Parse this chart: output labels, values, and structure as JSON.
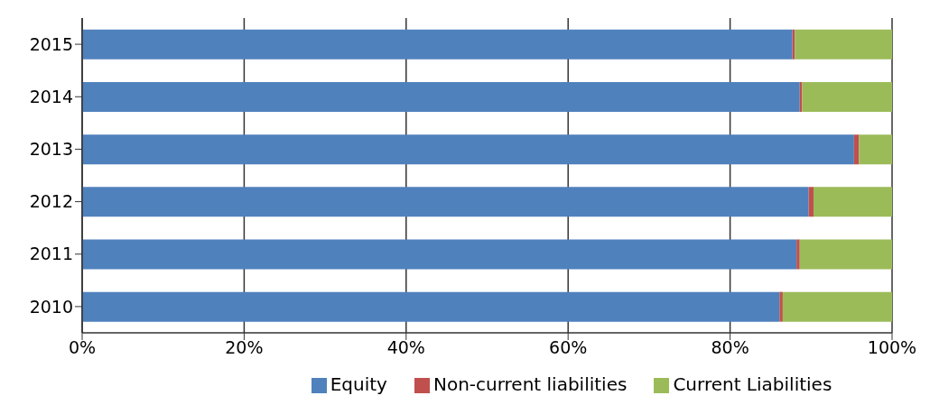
{
  "chart_data": {
    "type": "bar",
    "orientation": "horizontal",
    "stacked": true,
    "categories": [
      "2015",
      "2014",
      "2013",
      "2012",
      "2011",
      "2010"
    ],
    "series": [
      {
        "name": "Equity",
        "color": "#4f81bd",
        "values": [
          87.7,
          88.6,
          95.3,
          89.7,
          88.2,
          86.1
        ]
      },
      {
        "name": "Non-current liabilities",
        "color": "#c0504d",
        "values": [
          0.3,
          0.3,
          0.6,
          0.6,
          0.4,
          0.4
        ]
      },
      {
        "name": "Current Liabilities",
        "color": "#9bbb59",
        "values": [
          12.0,
          11.1,
          4.1,
          9.7,
          11.4,
          13.5
        ]
      }
    ],
    "xlim": [
      0,
      100
    ],
    "xticks": [
      {
        "value": 0,
        "label": "0%"
      },
      {
        "value": 20,
        "label": "20%"
      },
      {
        "value": 40,
        "label": "40%"
      },
      {
        "value": 60,
        "label": "60%"
      },
      {
        "value": 80,
        "label": "80%"
      },
      {
        "value": 100,
        "label": "100%"
      }
    ],
    "grid": "x",
    "legend": "bottom"
  }
}
